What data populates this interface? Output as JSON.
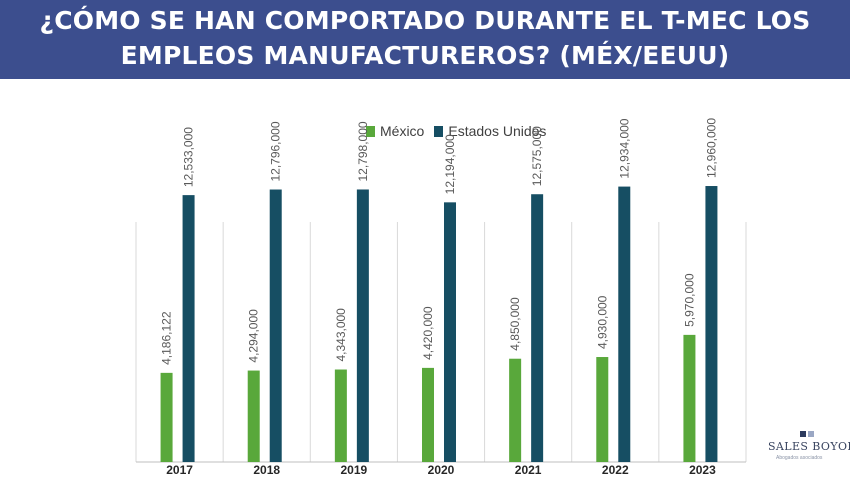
{
  "header": {
    "title_line1": "¿CÓMO SE HAN COMPORTADO DURANTE EL T-MEC LOS",
    "title_line2": "EMPLEOS MANUFACTUREROS? (MÉX/EEUU)"
  },
  "logo": {
    "brand": "SALES BOYOLI",
    "tagline": "Abogados asociados"
  },
  "colors": {
    "banner": "#3c4e8e",
    "mexico": "#59a83b",
    "usa": "#164e63",
    "grid": "#d9d9d9"
  },
  "chart_data": {
    "type": "bar",
    "categories": [
      "2017",
      "2018",
      "2019",
      "2020",
      "2021",
      "2022",
      "2023"
    ],
    "series": [
      {
        "name": "México",
        "values": [
          4186122,
          4294000,
          4343000,
          4420000,
          4850000,
          4930000,
          5970000
        ],
        "labels": [
          "4,186,122",
          "4,294,000",
          "4,343,000",
          "4,420,000",
          "4,850,000",
          "4,930,000",
          "5,970,000"
        ]
      },
      {
        "name": "Estados Unidos",
        "values": [
          12533000,
          12796000,
          12798000,
          12194000,
          12575000,
          12934000,
          12960000
        ],
        "labels": [
          "12,533,000",
          "12,796,000",
          "12,798,000",
          "12,194,000",
          "12,575,000",
          "12,934,000",
          "12,960,000"
        ]
      }
    ],
    "ylim": [
      0,
      17000000
    ],
    "legend": "top-center",
    "title": "",
    "xlabel": "",
    "ylabel": ""
  }
}
